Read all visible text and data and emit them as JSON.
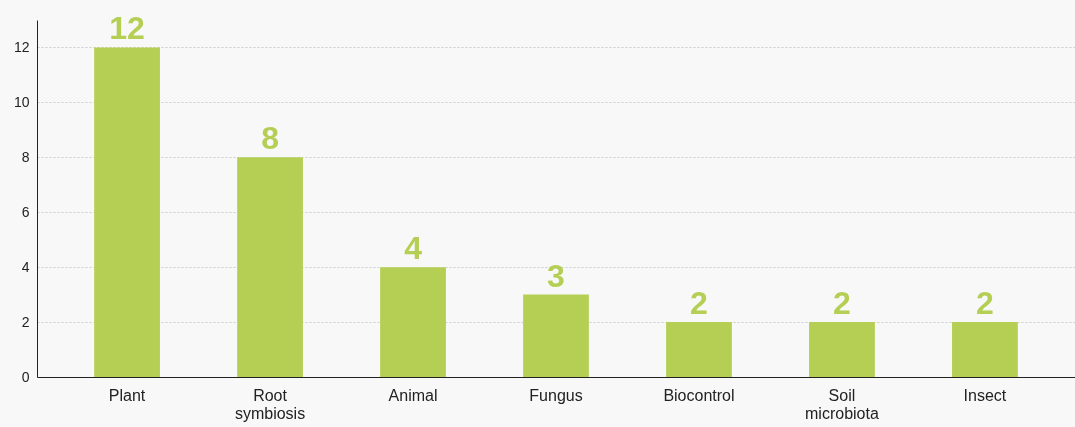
{
  "chart_data": {
    "type": "bar",
    "categories": [
      "Plant",
      "Root symbiosis",
      "Animal",
      "Fungus",
      "Biocontrol",
      "Soil microbiota",
      "Insect"
    ],
    "values": [
      12,
      8,
      4,
      3,
      2,
      2,
      2
    ],
    "color": "#b5cf54",
    "ylim": [
      0,
      13
    ],
    "yticks": [
      0,
      2,
      4,
      6,
      8,
      10,
      12
    ],
    "grid": "y",
    "data_labels": true
  }
}
